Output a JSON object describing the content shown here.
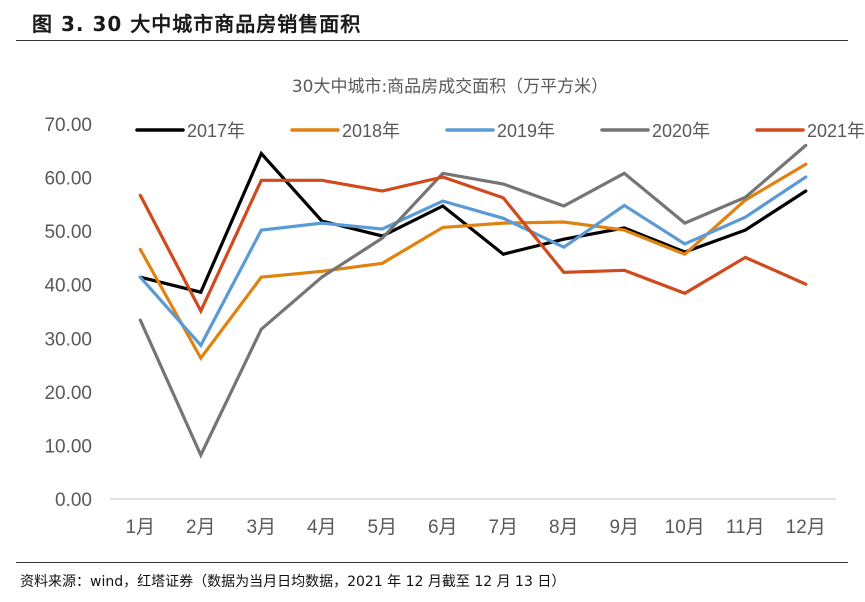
{
  "figure": {
    "title": "图 3. 30 大中城市商品房销售面积",
    "source": "资料来源：wind，红塔证券（数据为当月日均数据，2021 年 12 月截至 12 月 13 日）"
  },
  "chart_data": {
    "type": "line",
    "title": "30大中城市:商品房成交面积（万平方米）",
    "xlabel": "",
    "ylabel": "",
    "ylim": [
      0,
      70
    ],
    "yticks": [
      "0.00",
      "10.00",
      "20.00",
      "30.00",
      "40.00",
      "50.00",
      "60.00",
      "70.00"
    ],
    "ytick_values": [
      0,
      10,
      20,
      30,
      40,
      50,
      60,
      70
    ],
    "grid": false,
    "legend_position": "top",
    "categories": [
      "1月",
      "2月",
      "3月",
      "4月",
      "5月",
      "6月",
      "7月",
      "8月",
      "9月",
      "10月",
      "11月",
      "12月"
    ],
    "series": [
      {
        "name": "2017年",
        "color": "#000000",
        "values": [
          41.4,
          38.6,
          64.5,
          51.9,
          49.1,
          54.7,
          45.7,
          48.5,
          50.6,
          46.1,
          50.2,
          57.5
        ]
      },
      {
        "name": "2018年",
        "color": "#E0820F",
        "values": [
          46.6,
          26.3,
          41.4,
          42.5,
          44.0,
          50.7,
          51.5,
          51.7,
          50.2,
          45.7,
          55.8,
          62.5
        ]
      },
      {
        "name": "2019年",
        "color": "#5B9BD5",
        "values": [
          41.4,
          28.7,
          50.2,
          51.5,
          50.4,
          55.6,
          52.4,
          47.0,
          54.8,
          47.6,
          52.6,
          60.1
        ]
      },
      {
        "name": "2020年",
        "color": "#757575",
        "values": [
          33.4,
          8.2,
          31.7,
          41.4,
          48.7,
          60.8,
          58.8,
          54.7,
          60.8,
          51.5,
          56.3,
          66.0
        ]
      },
      {
        "name": "2021年",
        "color": "#D04A1E",
        "values": [
          56.7,
          35.1,
          59.5,
          59.5,
          57.5,
          60.1,
          56.2,
          42.3,
          42.7,
          38.4,
          45.1,
          40.1
        ]
      }
    ]
  }
}
